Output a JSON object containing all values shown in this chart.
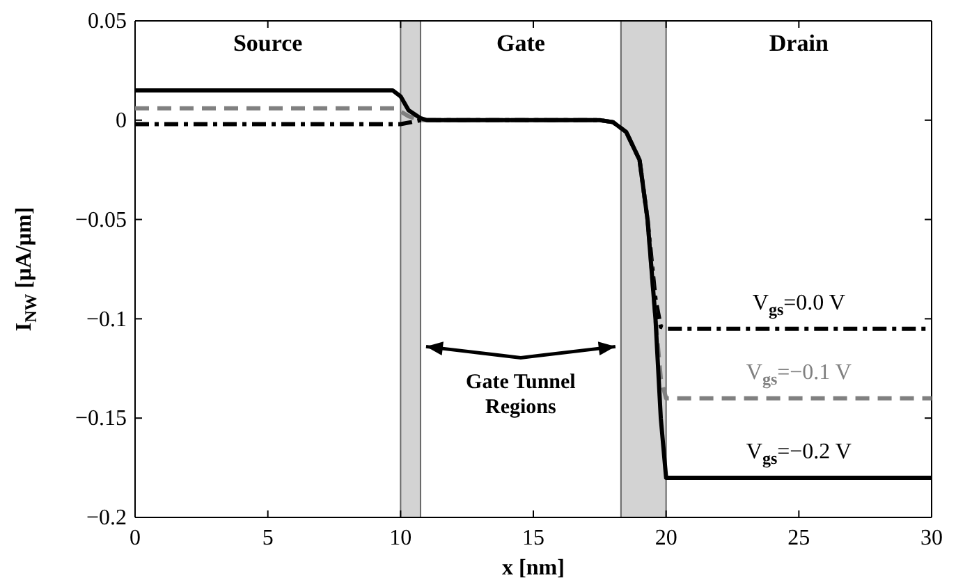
{
  "chart_data": {
    "type": "line",
    "xlabel": "x [nm]",
    "ylabel": "I$_{NW}$ [µA/µm]",
    "xlim": [
      0,
      30
    ],
    "xticks": [
      0,
      5,
      10,
      15,
      20,
      25,
      30
    ],
    "ylim": [
      -0.2,
      0.05
    ],
    "yticks": [
      {
        "value": -0.2,
        "label": "−0.2"
      },
      {
        "value": -0.15,
        "label": "−0.15"
      },
      {
        "value": -0.1,
        "label": "−0.1"
      },
      {
        "value": -0.05,
        "label": "−0.05"
      },
      0,
      0.05
    ],
    "grid": false,
    "legend": false,
    "marker": "none",
    "bands": [
      {
        "axis": "x",
        "from": 10,
        "to": 10.75,
        "color": "#d3d3d3"
      },
      {
        "axis": "x",
        "from": 18.3,
        "to": 20,
        "color": "#d3d3d3"
      }
    ],
    "annotations": [
      "Source",
      "Gate",
      "Drain",
      "Gate Tunnel Regions"
    ],
    "series": [
      {
        "name": "V$_{gs}$=0.0 V",
        "color": "#000000",
        "line_style": "dashdot",
        "x": [
          0,
          10,
          10.4,
          10.75,
          17.5,
          18,
          18.5,
          19,
          19.3,
          19.6,
          19.8,
          20,
          30
        ],
        "values": [
          -0.002,
          -0.002,
          -0.001,
          0,
          0,
          -0.001,
          -0.006,
          -0.02,
          -0.05,
          -0.09,
          -0.104,
          -0.105,
          -0.105
        ]
      },
      {
        "name": "V$_{gs}$=−0.1 V",
        "color": "#808080",
        "line_style": "dashed",
        "x": [
          0,
          9.8,
          10.3,
          10.75,
          17.5,
          18,
          18.5,
          19,
          19.3,
          19.6,
          19.8,
          20,
          30
        ],
        "values": [
          0.006,
          0.006,
          0.002,
          0,
          0,
          -0.001,
          -0.006,
          -0.02,
          -0.05,
          -0.1,
          -0.13,
          -0.14,
          -0.14
        ]
      },
      {
        "name": "V$_{gs}$=−0.2 V",
        "color": "#000000",
        "line_style": "solid",
        "x": [
          0,
          9.7,
          10,
          10.3,
          10.75,
          11,
          17.5,
          18,
          18.5,
          19,
          19.3,
          19.6,
          19.8,
          20,
          30
        ],
        "values": [
          0.015,
          0.015,
          0.012,
          0.005,
          0.001,
          0,
          0,
          -0.001,
          -0.006,
          -0.02,
          -0.05,
          -0.1,
          -0.15,
          -0.18,
          -0.18
        ]
      }
    ]
  }
}
